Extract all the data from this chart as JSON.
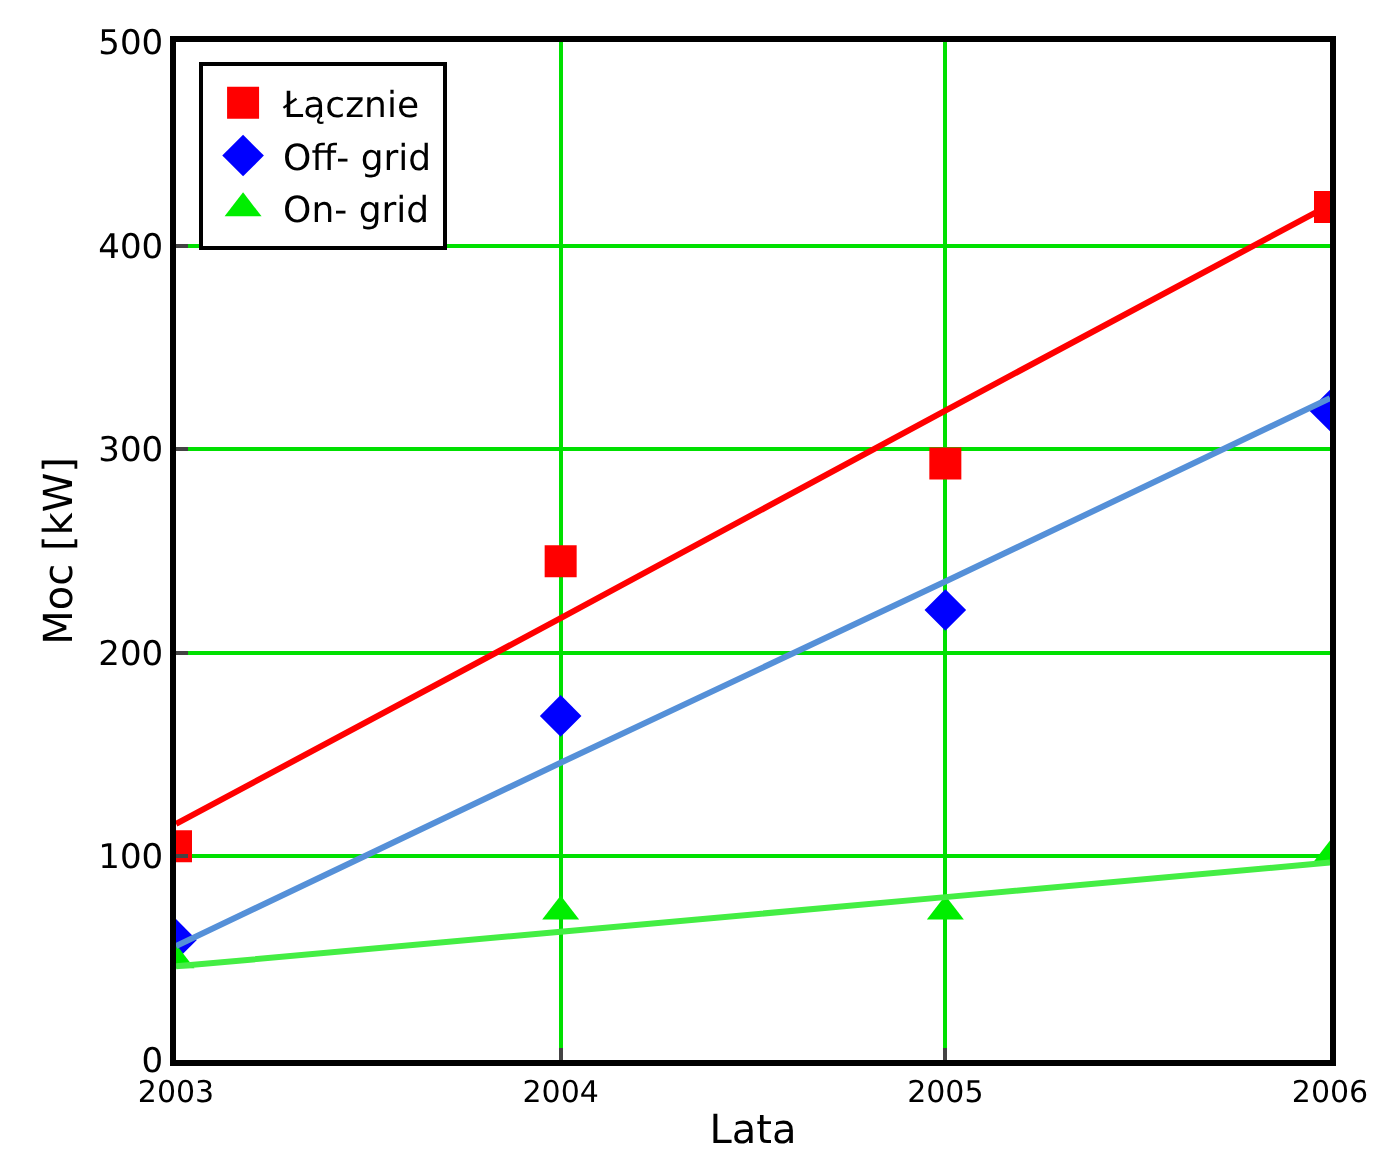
{
  "chart_data": {
    "type": "scatter",
    "xlabel": "Lata",
    "ylabel": "Moc [kW]",
    "x": [
      2003,
      2004,
      2005,
      2006
    ],
    "series": [
      {
        "name": "Łącznie",
        "color": "#ff0000",
        "marker": "square",
        "values": [
          105,
          245,
          293,
          419
        ]
      },
      {
        "name": "Off- grid",
        "color": "#0000ff",
        "marker": "diamond",
        "values": [
          59,
          169,
          221,
          319
        ]
      },
      {
        "name": "On- grid",
        "color": "#00ee00",
        "marker": "triangle",
        "values": [
          49,
          73,
          73,
          100
        ]
      },
      {
        "type": "line",
        "color": "#ff0000",
        "values": [
          116,
          217,
          319,
          420
        ]
      },
      {
        "type": "line",
        "color": "#5590d8",
        "values": [
          56,
          146,
          235,
          325
        ]
      },
      {
        "type": "line",
        "color": "#44ee44",
        "values": [
          46,
          63,
          80,
          97
        ]
      }
    ],
    "xlim": [
      2003,
      2006
    ],
    "xticks": [
      2003,
      2004,
      2005,
      2006
    ],
    "ylim": [
      0,
      500
    ],
    "yticks": [
      0,
      100,
      200,
      300,
      400,
      500
    ],
    "grid": true,
    "legend": "top left"
  }
}
